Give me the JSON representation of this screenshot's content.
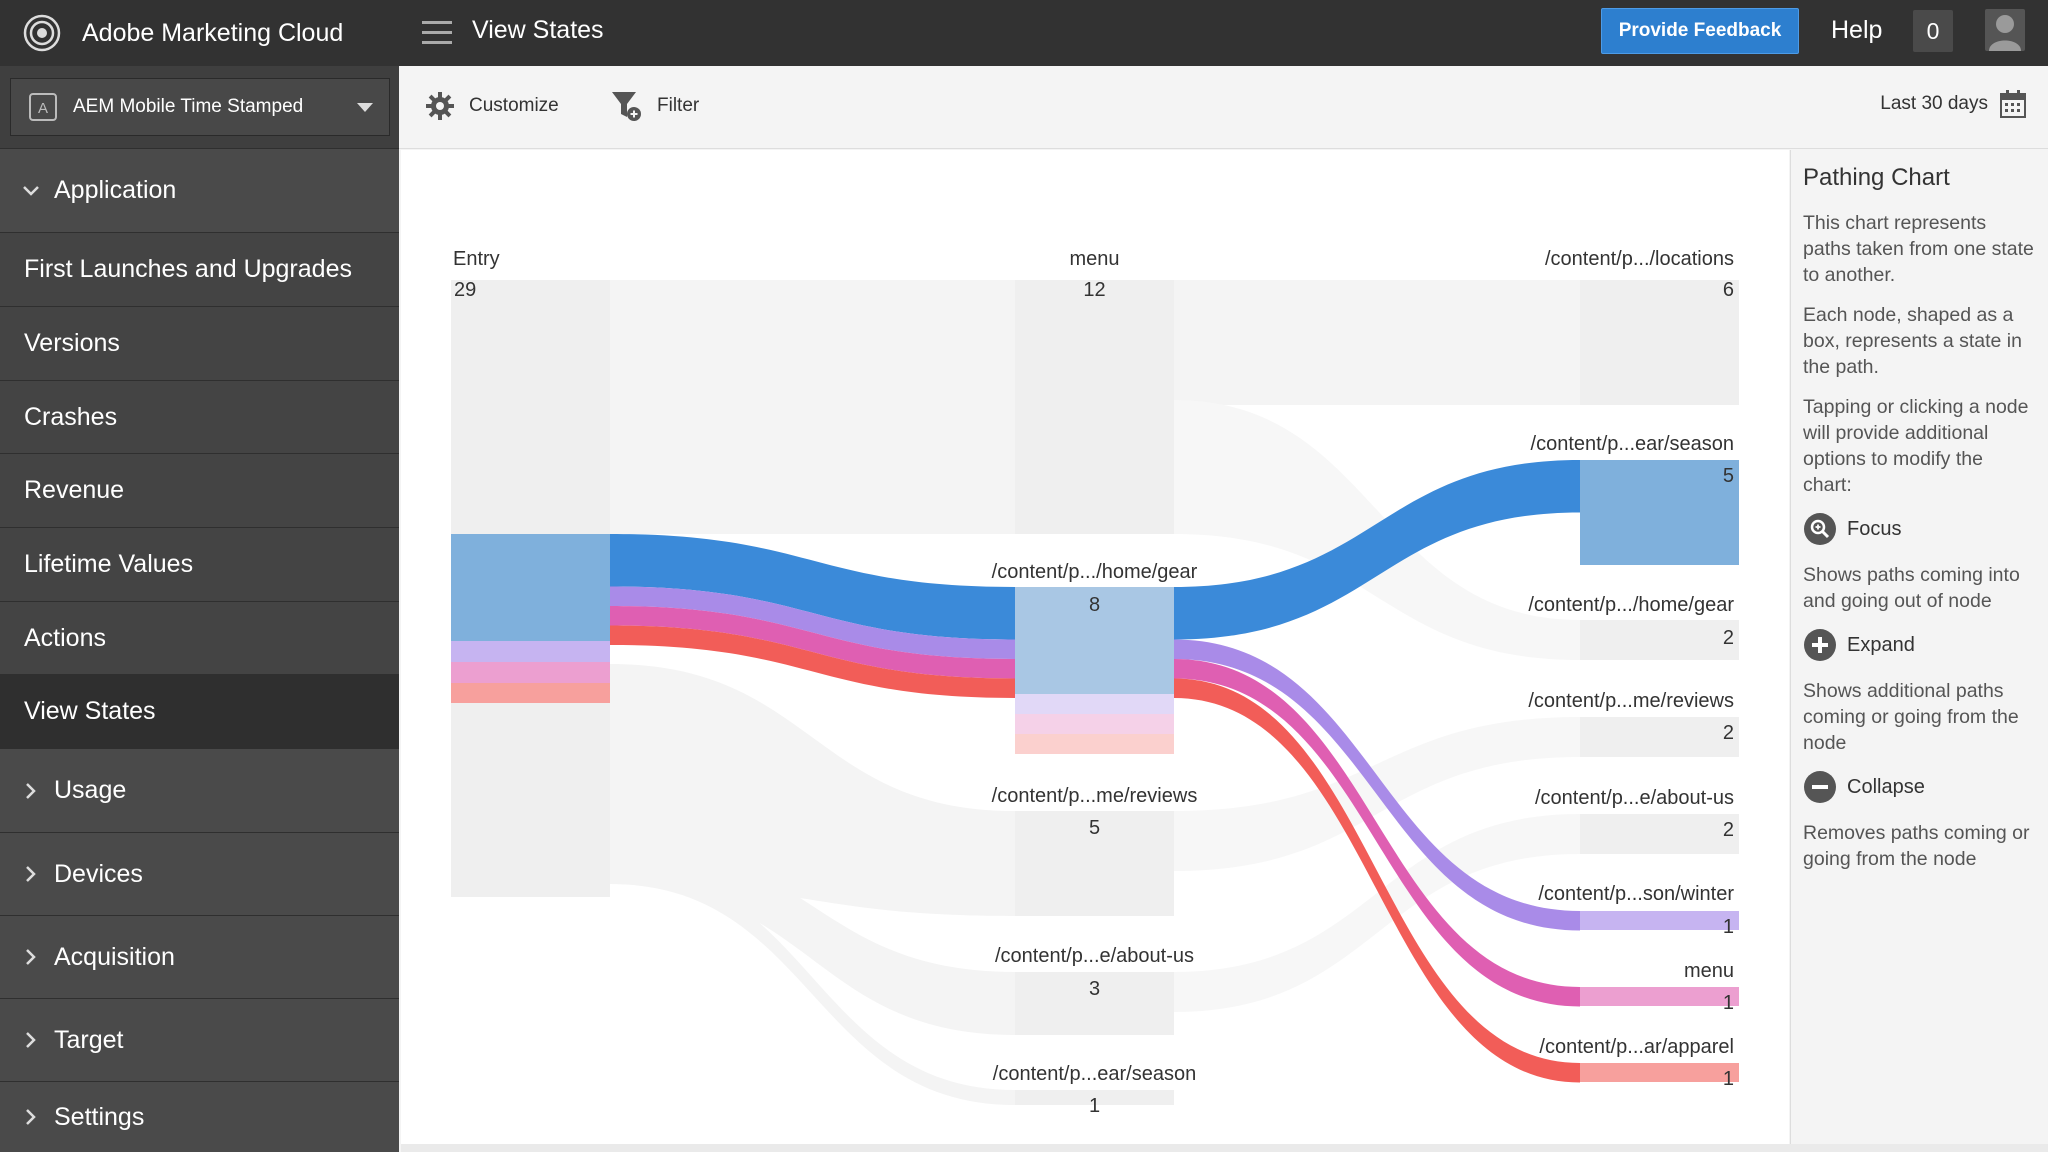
{
  "header": {
    "brand": "Adobe Marketing Cloud",
    "page_title": "View States",
    "feedback_label": "Provide Feedback",
    "help_label": "Help",
    "notification_count": "0"
  },
  "sidebar": {
    "report_suite": "AEM Mobile Time Stamped",
    "items": [
      {
        "label": "Application",
        "kind": "group-open"
      },
      {
        "label": "First Launches and Upgrades",
        "kind": "sub"
      },
      {
        "label": "Versions",
        "kind": "sub"
      },
      {
        "label": "Crashes",
        "kind": "sub"
      },
      {
        "label": "Revenue",
        "kind": "sub"
      },
      {
        "label": "Lifetime Values",
        "kind": "sub"
      },
      {
        "label": "Actions",
        "kind": "sub"
      },
      {
        "label": "View States",
        "kind": "sub-active"
      },
      {
        "label": "Usage",
        "kind": "group"
      },
      {
        "label": "Devices",
        "kind": "group"
      },
      {
        "label": "Acquisition",
        "kind": "group"
      },
      {
        "label": "Target",
        "kind": "group"
      },
      {
        "label": "Settings",
        "kind": "group"
      }
    ]
  },
  "toolbar": {
    "customize_label": "Customize",
    "filter_label": "Filter",
    "date_range": "Last 30 days"
  },
  "info": {
    "title": "Pathing Chart",
    "p1": "This chart represents paths taken from one state to another.",
    "p2": "Each node, shaped as a box, represents a state in the path.",
    "p3": "Tapping or clicking a node will provide additional options to modify the chart:",
    "focus_label": "Focus",
    "focus_desc": "Shows paths coming into and going out of node",
    "expand_label": "Expand",
    "expand_desc": "Shows additional paths coming or going from the node",
    "collapse_label": "Collapse",
    "collapse_desc": "Removes paths coming or going from the node"
  },
  "colors": {
    "blue": "#3b8ad9",
    "blue_node": "#7fb0dc",
    "purple": "#a98be8",
    "magenta": "#df5fb2",
    "red": "#f25d58",
    "grey_node": "#efefef",
    "grey_flow": "#f4f4f4"
  },
  "chart_data": {
    "type": "sankey",
    "columns": [
      {
        "nodes": [
          {
            "id": "entry",
            "label": "Entry",
            "value": 29
          }
        ]
      },
      {
        "nodes": [
          {
            "id": "menu1",
            "label": "menu",
            "value": 12
          },
          {
            "id": "gear1",
            "label": "/content/p.../home/gear",
            "value": 8
          },
          {
            "id": "reviews1",
            "label": "/content/p...me/reviews",
            "value": 5
          },
          {
            "id": "about1",
            "label": "/content/p...e/about-us",
            "value": 3
          },
          {
            "id": "season1",
            "label": "/content/p...ear/season",
            "value": 1
          }
        ]
      },
      {
        "nodes": [
          {
            "id": "locations2",
            "label": "/content/p.../locations",
            "value": 6
          },
          {
            "id": "season2",
            "label": "/content/p...ear/season",
            "value": 5
          },
          {
            "id": "gear2",
            "label": "/content/p.../home/gear",
            "value": 2
          },
          {
            "id": "reviews2",
            "label": "/content/p...me/reviews",
            "value": 2
          },
          {
            "id": "about2",
            "label": "/content/p...e/about-us",
            "value": 2
          },
          {
            "id": "winter2",
            "label": "/content/p...son/winter",
            "value": 1
          },
          {
            "id": "menu2",
            "label": "menu",
            "value": 1
          },
          {
            "id": "apparel2",
            "label": "/content/p...ar/apparel",
            "value": 1
          }
        ]
      }
    ],
    "highlighted_paths": [
      {
        "from": "entry",
        "via": "gear1",
        "to": "season2",
        "value": 5,
        "color": "blue"
      },
      {
        "from": "entry",
        "via": "gear1",
        "to": "winter2",
        "value": 1,
        "color": "purple"
      },
      {
        "from": "entry",
        "via": "gear1",
        "to": "menu2",
        "value": 1,
        "color": "magenta"
      },
      {
        "from": "entry",
        "via": "gear1",
        "to": "apparel2",
        "value": 1,
        "color": "red"
      }
    ]
  }
}
